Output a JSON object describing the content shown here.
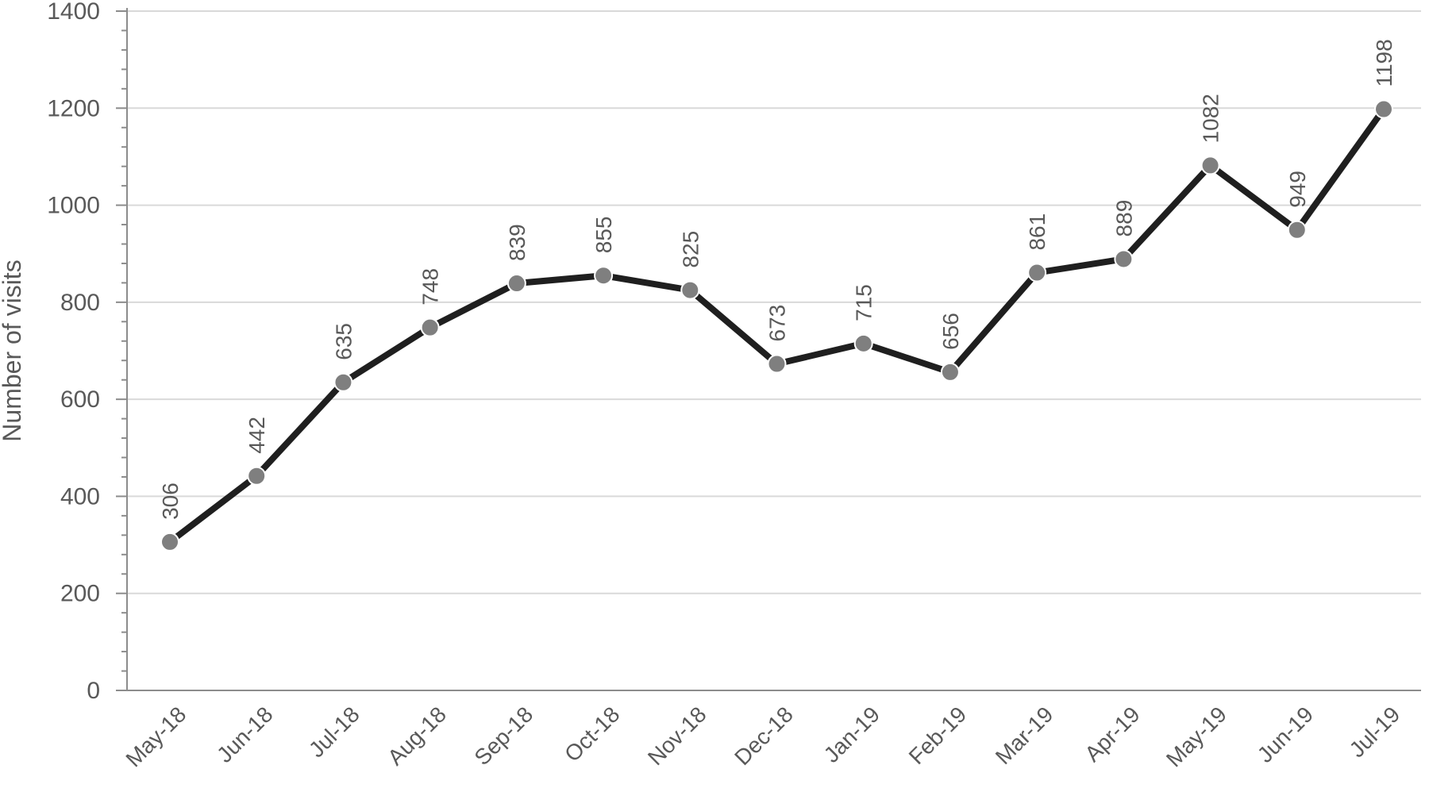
{
  "chart_data": {
    "type": "line",
    "title": "",
    "xlabel": "",
    "ylabel": "Number of visits",
    "ylim": [
      0,
      1400
    ],
    "yticks": [
      0,
      200,
      400,
      600,
      800,
      1000,
      1200,
      1400
    ],
    "grid": true,
    "legend": "none",
    "categories": [
      "May-18",
      "Jun-18",
      "Jul-18",
      "Aug-18",
      "Sep-18",
      "Oct-18",
      "Nov-18",
      "Dec-18",
      "Jan-19",
      "Feb-19",
      "Mar-19",
      "Apr-19",
      "May-19",
      "Jun-19",
      "Jul-19"
    ],
    "series": [
      {
        "values": [
          306,
          442,
          635,
          748,
          839,
          855,
          825,
          673,
          715,
          656,
          861,
          889,
          1082,
          949,
          1198
        ],
        "line_color": "#1f1f1f",
        "marker_color": "#7f7f7f"
      }
    ],
    "data_labels": [
      "306",
      "442",
      "635",
      "748",
      "839",
      "855",
      "825",
      "673",
      "715",
      "656",
      "861",
      "889",
      "1082",
      "949",
      "1198"
    ],
    "y_tick_labels": [
      "0",
      "200",
      "400",
      "600",
      "800",
      "1000",
      "1200",
      "1400"
    ]
  }
}
